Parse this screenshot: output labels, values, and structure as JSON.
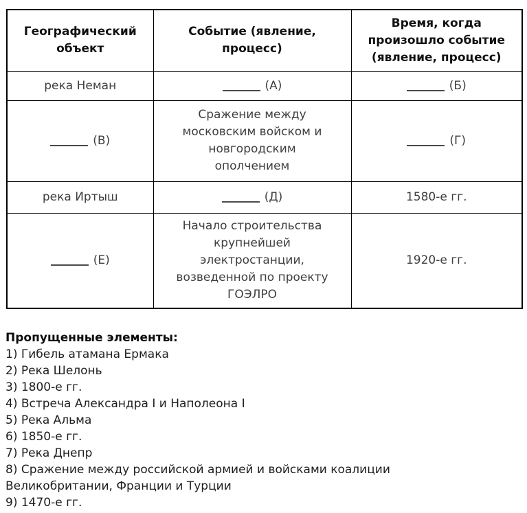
{
  "colors": {
    "background": "#ffffff",
    "table_border": "#000000",
    "header_text": "#111111",
    "cell_text": "#3f3f3f",
    "list_text": "#1e1e1e"
  },
  "table": {
    "headers": [
      "Географический объект",
      "Событие (явление, процесс)",
      "Время, когда произошло событие (явление, процесс)"
    ],
    "rows": [
      {
        "object": "река Неман",
        "event_blank": "(А)",
        "time_blank": "(Б)"
      },
      {
        "object_blank": "(В)",
        "event": "Сражение между московским войском и новгородским ополчением",
        "time_blank": "(Г)"
      },
      {
        "object": "река Иртыш",
        "event_blank": "(Д)",
        "time": "1580-е гг."
      },
      {
        "object_blank": "(Е)",
        "event": "Начало строительства крупнейшей электростанции, возведенной по проекту ГОЭЛРО",
        "time": "1920-е гг."
      }
    ]
  },
  "missing": {
    "heading": "Пропущенные элементы:",
    "items": [
      "1) Гибель атамана Ермака",
      "2) Река Шелонь",
      "3) 1800-е гг.",
      "4) Встреча Александра I и Наполеона I",
      "5) Река Альма",
      "6) 1850-е гг.",
      "7) Река Днепр",
      "8) Сражение между российской армией и войсками коалиции Великобритании, Франции и Турции",
      "9) 1470-е гг."
    ]
  }
}
